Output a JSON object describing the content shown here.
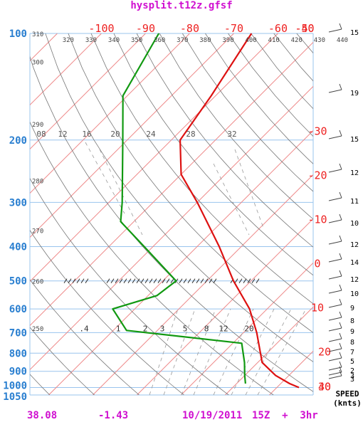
{
  "title": "hysplit.t12z.gfsf",
  "footer": {
    "lat": "38.08",
    "lon": "-1.43",
    "date": "10/19/2011",
    "time": "15Z  +  3hr"
  },
  "colors": {
    "temperature": "#dd1111",
    "dewpoint": "#119911",
    "pressure_axis": "#2a7fd0",
    "isotherm_labels": "#ee2222",
    "title": "#d010d0",
    "isotherm_lines": "#ee8888",
    "isobar_lines": "#99c4ee",
    "dry_adiabat": "#777777"
  },
  "chart_data": {
    "type": "skew-t log-p",
    "title": "hysplit.t12z.gfsf",
    "pressure_levels": [
      100,
      200,
      300,
      400,
      500,
      600,
      700,
      800,
      900,
      1000,
      1050
    ],
    "pressure_tick_labels": [
      "100",
      "200",
      "300",
      "400",
      "500",
      "600",
      "700",
      "800",
      "900",
      "1000",
      "1050"
    ],
    "isotherm_labels_top": [
      "-100",
      "-90",
      "-80",
      "-70",
      "-60",
      "-50",
      "-40"
    ],
    "isotherm_labels_right": [
      "-30",
      "-20",
      "-10",
      "0",
      "10",
      "20",
      "30",
      "40"
    ],
    "theta_labels_top": [
      "320",
      "330",
      "340",
      "350",
      "360",
      "370",
      "380",
      "390",
      "400",
      "410",
      "420",
      "430",
      "440"
    ],
    "theta_labels_left": [
      "310",
      "300",
      "290",
      "280",
      "270",
      "260",
      "250"
    ],
    "mixing_ratio_labels_upper": [
      "08",
      "12",
      "16",
      "20",
      "24",
      "28",
      "32"
    ],
    "mixing_ratio_labels_lower": [
      ".4",
      "1",
      "2",
      "3",
      "5",
      "8",
      "12",
      "20"
    ],
    "temperature": [
      {
        "p": 1000,
        "t": 25
      },
      {
        "p": 975,
        "t": 22
      },
      {
        "p": 925,
        "t": 17
      },
      {
        "p": 850,
        "t": 11
      },
      {
        "p": 700,
        "t": 3
      },
      {
        "p": 600,
        "t": -4
      },
      {
        "p": 500,
        "t": -14
      },
      {
        "p": 400,
        "t": -25
      },
      {
        "p": 300,
        "t": -40
      },
      {
        "p": 250,
        "t": -50
      },
      {
        "p": 200,
        "t": -58
      },
      {
        "p": 150,
        "t": -61
      },
      {
        "p": 100,
        "t": -66
      }
    ],
    "dewpoint": [
      {
        "p": 975,
        "t": 12
      },
      {
        "p": 925,
        "t": 10
      },
      {
        "p": 850,
        "t": 7
      },
      {
        "p": 750,
        "t": 2
      },
      {
        "p": 690,
        "t": -27
      },
      {
        "p": 600,
        "t": -35
      },
      {
        "p": 550,
        "t": -28
      },
      {
        "p": 500,
        "t": -27
      },
      {
        "p": 400,
        "t": -42
      },
      {
        "p": 340,
        "t": -53
      },
      {
        "p": 300,
        "t": -57
      },
      {
        "p": 200,
        "t": -71
      },
      {
        "p": 150,
        "t": -81
      },
      {
        "p": 100,
        "t": -87
      }
    ],
    "wind_speed_labels": [
      "15",
      "19",
      "15",
      "12",
      "11",
      "10",
      "12",
      "14",
      "12",
      "10",
      "9",
      "8",
      "9",
      "8",
      "7",
      "5",
      "2",
      "3",
      "3"
    ],
    "wind_axis_label": [
      "SPEED",
      "(knts)"
    ],
    "freezing_level_hatch_p": 500
  }
}
